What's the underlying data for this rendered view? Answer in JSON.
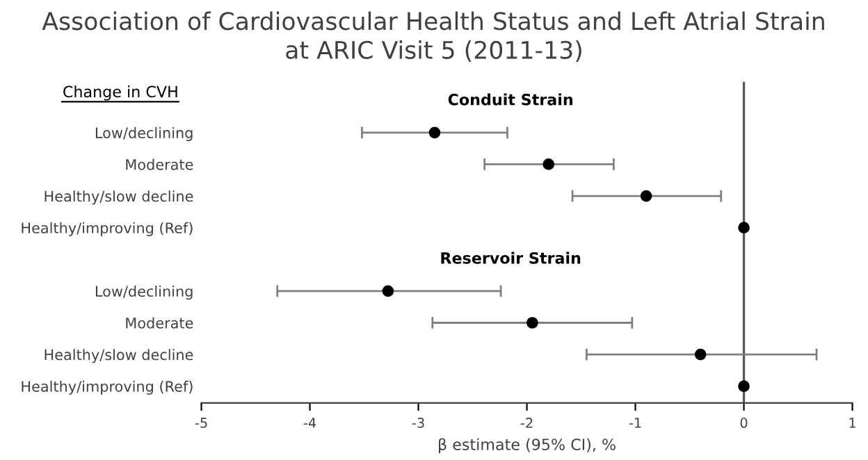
{
  "chart_data": {
    "type": "scatter",
    "orientation": "horizontal",
    "title": "Association of Cardiovascular Health Status and Left Atrial Strain\nat ARIC Visit 5 (2011-13)",
    "xlabel": "β estimate (95% CI), %",
    "categories": [
      null,
      "Low/declining",
      "Moderate",
      "Healthy/slow decline",
      "Healthy/improving (Ref)",
      null,
      "Low/declining",
      "Moderate",
      "Healthy/slow decline",
      "Healthy/improving (Ref)"
    ],
    "series": [
      {
        "color": "#000000",
        "values": [
          null,
          -2.85,
          -1.8,
          -0.9,
          0,
          null,
          -3.28,
          -1.95,
          -0.4,
          0
        ],
        "errors": [
          null,
          [
            -3.52,
            -2.18
          ],
          [
            -2.39,
            -1.2
          ],
          [
            -1.58,
            -0.21
          ],
          null,
          null,
          [
            -4.3,
            -2.24
          ],
          [
            -2.87,
            -1.03
          ],
          [
            -1.45,
            0.67
          ],
          null
        ]
      }
    ],
    "annotations": [
      "Change in CVH",
      "Conduit Strain",
      "Reservoir Strain"
    ],
    "xlim": [
      -5,
      1
    ],
    "xticks": [
      -5,
      -4,
      -3,
      -2,
      -1,
      0,
      1
    ],
    "ref_lines": [
      {
        "axis": "x",
        "value": 0,
        "color": "#595959"
      }
    ],
    "marker": "circle",
    "grid": false,
    "legend": false
  }
}
